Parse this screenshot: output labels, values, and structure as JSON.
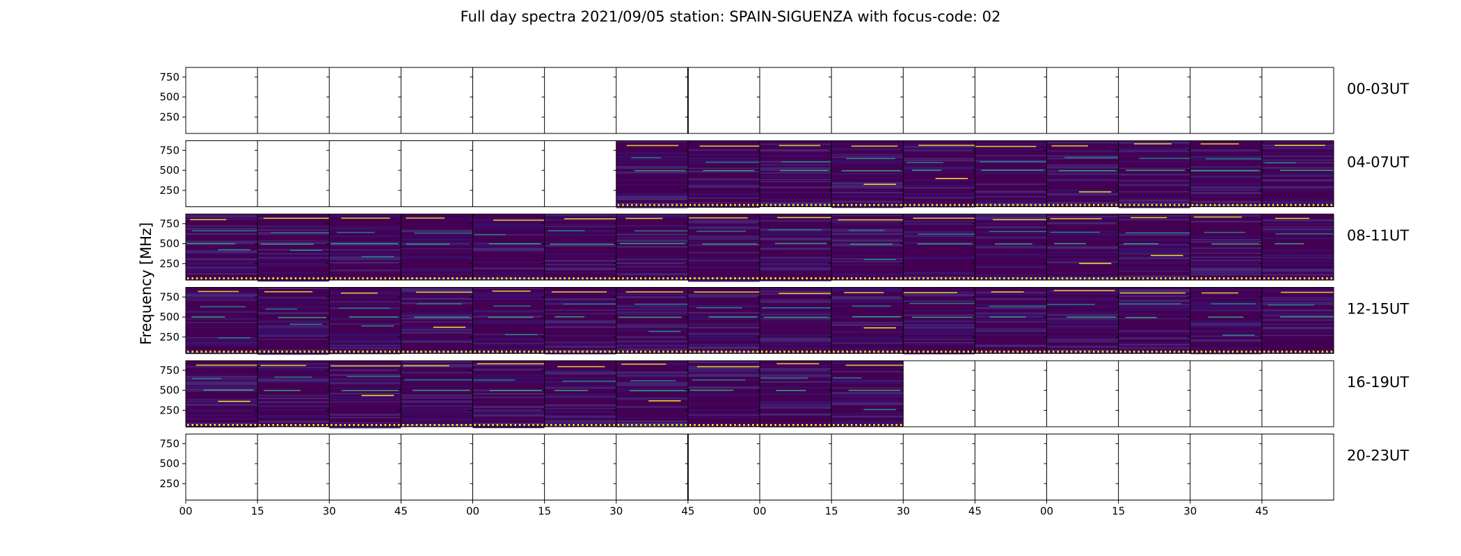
{
  "title": "Full day spectra 2021/09/05 station: SPAIN-SIGUENZA with focus-code: 02",
  "chart_data": {
    "type": "heatmap",
    "title": "Full day spectra 2021/09/05 station: SPAIN-SIGUENZA with focus-code: 02",
    "ylabel": "Frequency [MHz]",
    "xlabel": "",
    "y_ticks": [
      250,
      500,
      750
    ],
    "ylim": [
      45,
      870
    ],
    "x_tick_labels": [
      "00",
      "15",
      "30",
      "45",
      "00",
      "15",
      "30",
      "45",
      "00",
      "15",
      "30",
      "45",
      "00",
      "15",
      "30",
      "45"
    ],
    "colormap": "viridis",
    "rows": [
      {
        "label": "00-03UT",
        "filled_panels": 0
      },
      {
        "label": "04-07UT",
        "filled_panels": 10
      },
      {
        "label": "08-11UT",
        "filled_panels": 16
      },
      {
        "label": "12-15UT",
        "filled_panels": 16
      },
      {
        "label": "16-19UT",
        "filled_panels": 10
      },
      {
        "label": "20-23UT",
        "filled_panels": 0
      }
    ],
    "filled_panel_start": [
      16,
      6,
      0,
      0,
      0,
      16
    ],
    "panels_per_row": 16,
    "minutes_per_panel": 15,
    "grid": false
  },
  "colors": {
    "background": "#440154",
    "noise_a": "#3b0f6b",
    "noise_b": "#482878",
    "line_cyan": "#21918c",
    "line_green": "#35b779",
    "line_yellow": "#fde725",
    "axis": "#000000"
  }
}
